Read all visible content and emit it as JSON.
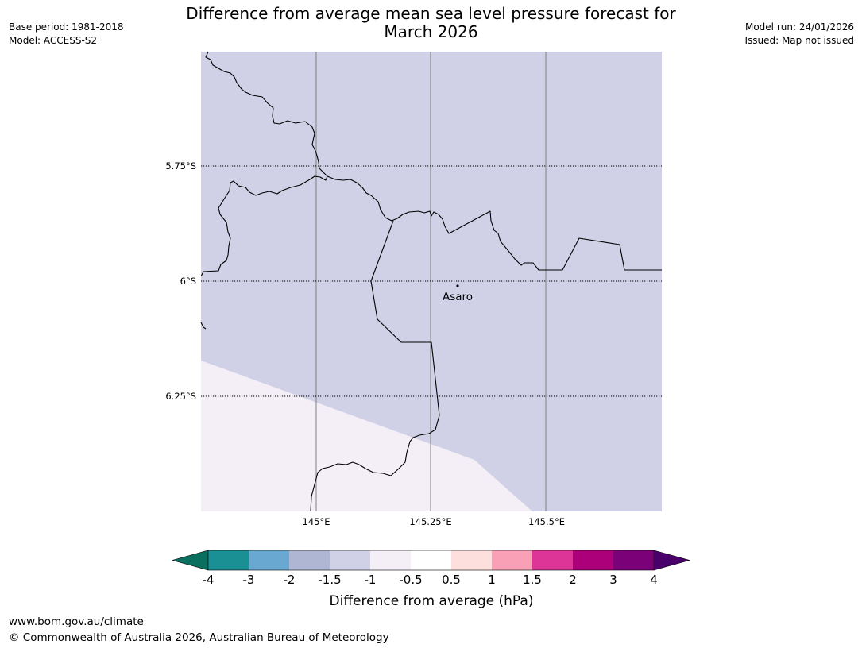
{
  "header": {
    "base_period": "Base period: 1981-2018",
    "model": "Model: ACCESS-S2",
    "title_line1": "Difference from average mean sea level pressure forecast for",
    "title_line2": "March 2026",
    "model_run": "Model run: 24/01/2026",
    "issued": "Issued: Map not issued"
  },
  "map": {
    "lat_labels": [
      "5.75°S",
      "6°S",
      "6.25°S"
    ],
    "lon_labels": [
      "145°E",
      "145.25°E",
      "145.5°E"
    ],
    "place": "Asaro",
    "colors": {
      "region_main": "#d0d1e6",
      "region_low": "#f4eef7",
      "boundary": "#000000",
      "gridline": "#808080"
    }
  },
  "colorbar": {
    "label": "Difference from average (hPa)",
    "ticks": [
      "-4",
      "-3",
      "-2",
      "-1.5",
      "-1",
      "-0.5",
      "0.5",
      "1",
      "1.5",
      "2",
      "3",
      "4"
    ],
    "colors": [
      "#1a9095",
      "#69a9d1",
      "#aeb6d3",
      "#d0d1e6",
      "#f4eef7",
      "#ffffff",
      "#fddfdd",
      "#f9a0b6",
      "#dd3498",
      "#ab0079",
      "#7a0177"
    ],
    "under_color": "#0b6f5f",
    "over_color": "#4a006a"
  },
  "footer": {
    "url": "www.bom.gov.au/climate",
    "copyright": "© Commonwealth of Australia 2026, Australian Bureau of Meteorology"
  }
}
